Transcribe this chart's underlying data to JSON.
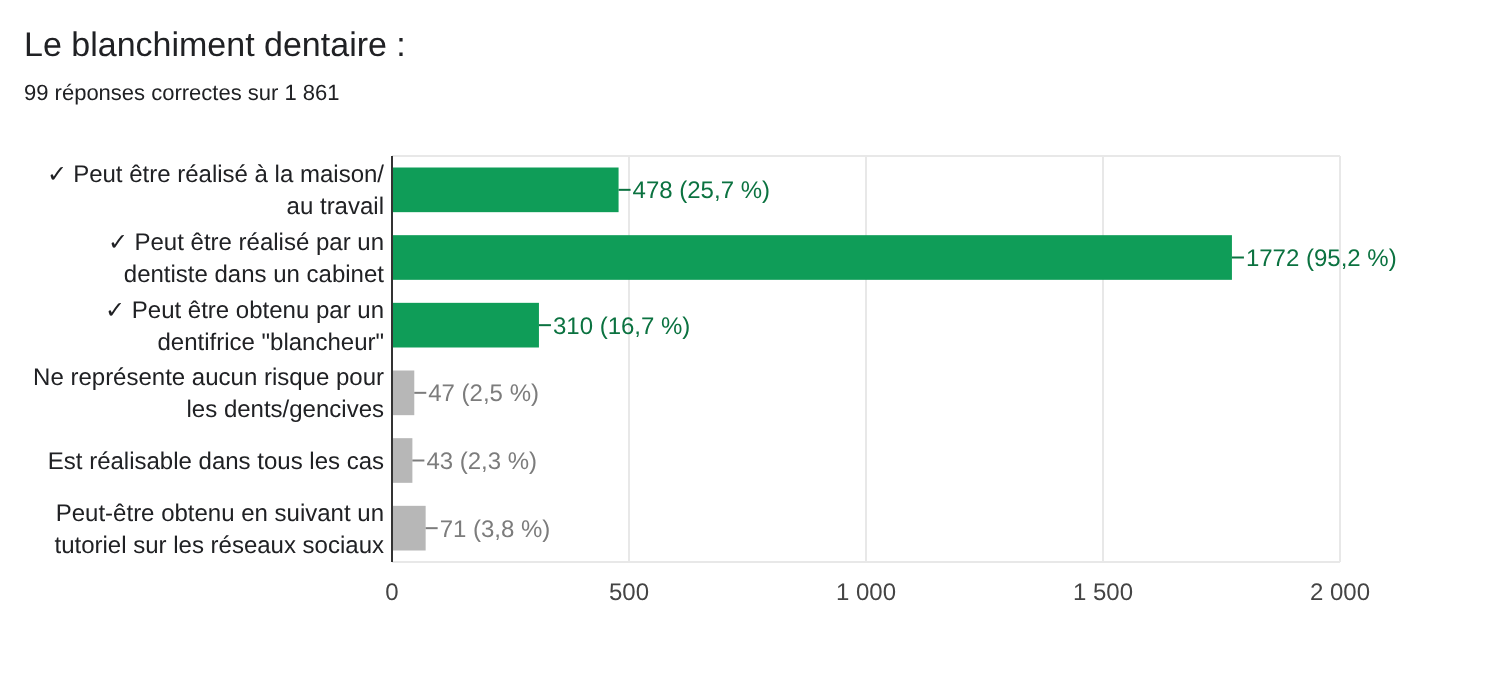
{
  "chart_data": {
    "type": "bar",
    "orientation": "horizontal",
    "title": "Le blanchiment dentaire :",
    "subtitle": "99 réponses correctes sur 1 861",
    "categories": [
      "✓ Peut être réalisé à la maison/au travail",
      "✓ Peut être réalisé par un dentiste dans un cabinet",
      "✓ Peut être obtenu par un dentifrice \"blancheur\"",
      "Ne représente aucun risque pour les dents/gencives",
      "Est réalisable dans tous les cas",
      "Peut-être obtenu en suivant un tutoriel sur les réseaux sociaux"
    ],
    "values": [
      478,
      1772,
      310,
      47,
      43,
      71
    ],
    "colors": [
      "#0f9d58",
      "#0f9d58",
      "#0f9d58",
      "#b7b7b7",
      "#b7b7b7",
      "#b7b7b7"
    ],
    "value_labels": [
      "478 (25,7 %)",
      "1772 (95,2 %)",
      "310 (16,7 %)",
      "47 (2,5 %)",
      "43 (2,3 %)",
      "71 (3,8 %)"
    ],
    "xlim": [
      0,
      2000
    ],
    "xticks": [
      0,
      500,
      {
        "value": 1000,
        "label": "1 000"
      },
      {
        "value": 1500,
        "label": "1 500"
      },
      {
        "value": 2000,
        "label": "2 000"
      }
    ],
    "grid": "x"
  }
}
